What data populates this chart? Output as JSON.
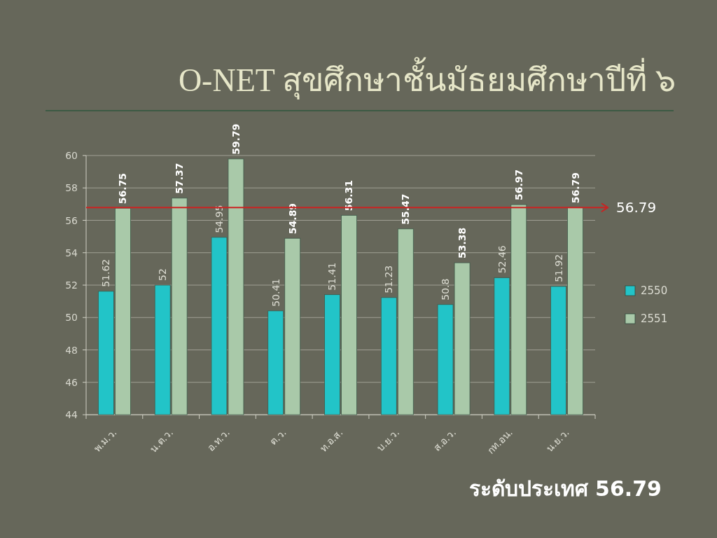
{
  "chart_data": {
    "type": "bar",
    "title": "O-NET สุขศึกษาชั้นมัธยมศึกษาปีที่ ๖",
    "categories": [
      "พ.ม.ว.",
      "น.ต.ว.",
      "อ.ท.ว.",
      "ต.ว.",
      "ท.อ.ส.",
      "บ.ย.ว.",
      "ส.อ.ว.",
      "กท.อน.",
      "น.ย.ว."
    ],
    "series": [
      {
        "name": "2550",
        "color": "#22c4c8",
        "values": [
          51.62,
          52,
          54.95,
          50.41,
          51.41,
          51.23,
          50.8,
          52.46,
          51.92
        ]
      },
      {
        "name": "2551",
        "color": "#a9c9a9",
        "values": [
          56.75,
          57.37,
          59.79,
          54.89,
          56.31,
          55.47,
          53.38,
          56.97,
          56.79
        ]
      }
    ],
    "ylim": [
      44,
      60
    ],
    "yticks": [
      44,
      46,
      48,
      50,
      52,
      54,
      56,
      58,
      60
    ],
    "grid": "y",
    "legend": "right",
    "data_labels": true,
    "ref_lines": [
      {
        "axis": "y",
        "value": 56.79,
        "label": "56.79",
        "color": "#cc2222"
      }
    ],
    "annotations": [
      "ระดับประเทศ 56.79"
    ]
  }
}
